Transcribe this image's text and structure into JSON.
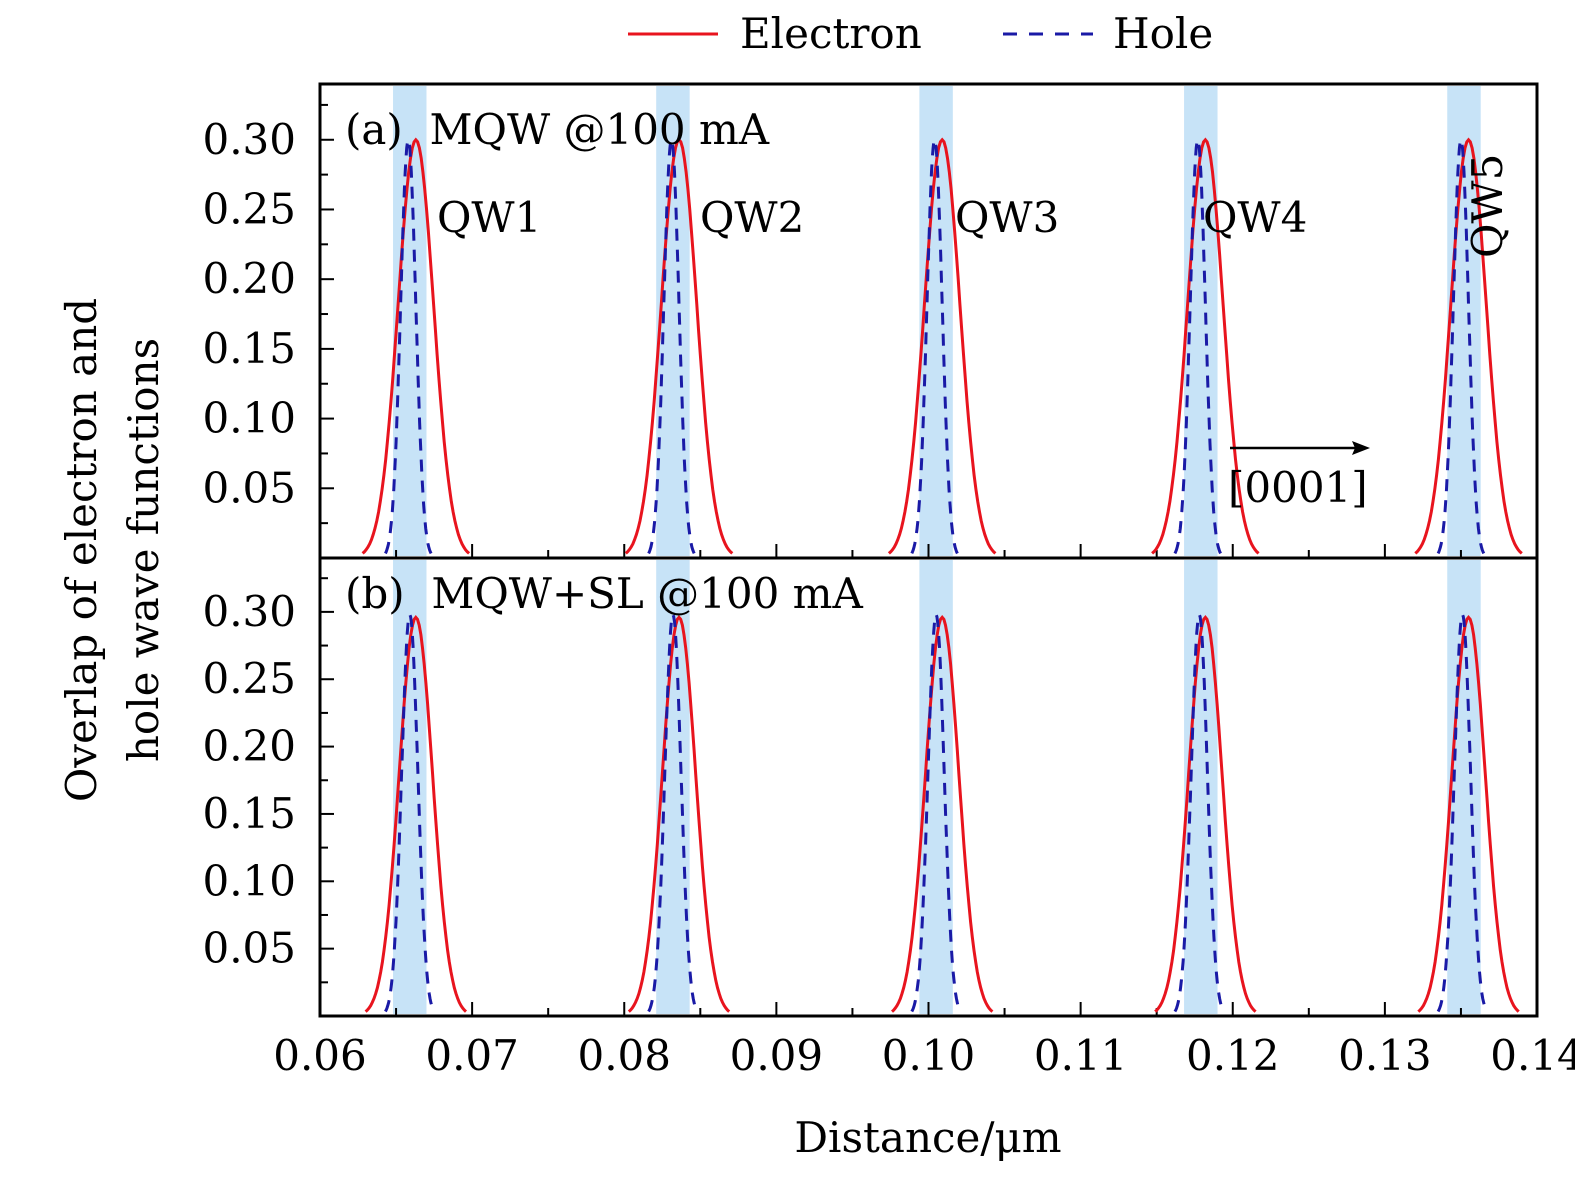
{
  "chart_data": {
    "type": "line",
    "xlabel": "Distance/μm",
    "ylabel_lines": [
      "Overlap of electron and",
      "hole wave functions"
    ],
    "xlim": [
      0.06,
      0.14
    ],
    "ylim": [
      0,
      0.34
    ],
    "x_ticks": [
      0.06,
      0.07,
      0.08,
      0.09,
      0.1,
      0.11,
      0.12,
      0.13,
      0.14
    ],
    "x_tick_labels": [
      "0.06",
      "0.07",
      "0.08",
      "0.09",
      "0.10",
      "0.11",
      "0.12",
      "0.13",
      "0.14"
    ],
    "y_ticks": [
      0.05,
      0.1,
      0.15,
      0.2,
      0.25,
      0.3
    ],
    "y_tick_labels": [
      "0.05",
      "0.10",
      "0.15",
      "0.20",
      "0.25",
      "0.30"
    ],
    "legend": [
      {
        "name": "Electron",
        "color": "#e8141e",
        "dash": "solid"
      },
      {
        "name": "Hole",
        "color": "#1a1aa6",
        "dash": "dashed"
      }
    ],
    "well_color": "#c7e3f7",
    "wells": [
      {
        "label": "QW1",
        "x_start": 0.0648,
        "x_end": 0.067
      },
      {
        "label": "QW2",
        "x_start": 0.0821,
        "x_end": 0.0843
      },
      {
        "label": "QW3",
        "x_start": 0.0994,
        "x_end": 0.1016
      },
      {
        "label": "QW4",
        "x_start": 0.1168,
        "x_end": 0.119
      },
      {
        "label": "QW5",
        "x_start": 0.1341,
        "x_end": 0.1363
      }
    ],
    "arrow_label": "[0001]",
    "panels": [
      {
        "id": "a",
        "title": "(a)  MQW @100 mA",
        "series": [
          {
            "name": "Electron",
            "peaks": [
              0.0663,
              0.0836,
              0.1009,
              0.1182,
              0.1355
            ],
            "peak_value": 0.3,
            "half_width": 0.0035
          },
          {
            "name": "Hole",
            "peaks": [
              0.0658,
              0.0831,
              0.1004,
              0.1177,
              0.135
            ],
            "peak_value": 0.3,
            "half_width": 0.0015
          }
        ]
      },
      {
        "id": "b",
        "title": "(b)  MQW+SL @100 mA",
        "series": [
          {
            "name": "Electron",
            "peaks": [
              0.0663,
              0.0836,
              0.1009,
              0.1182,
              0.1355
            ],
            "peak_value": 0.296,
            "half_width": 0.0033
          },
          {
            "name": "Hole",
            "peaks": [
              0.0659,
              0.0832,
              0.1005,
              0.1178,
              0.1351
            ],
            "peak_value": 0.298,
            "half_width": 0.0016
          }
        ]
      }
    ]
  }
}
